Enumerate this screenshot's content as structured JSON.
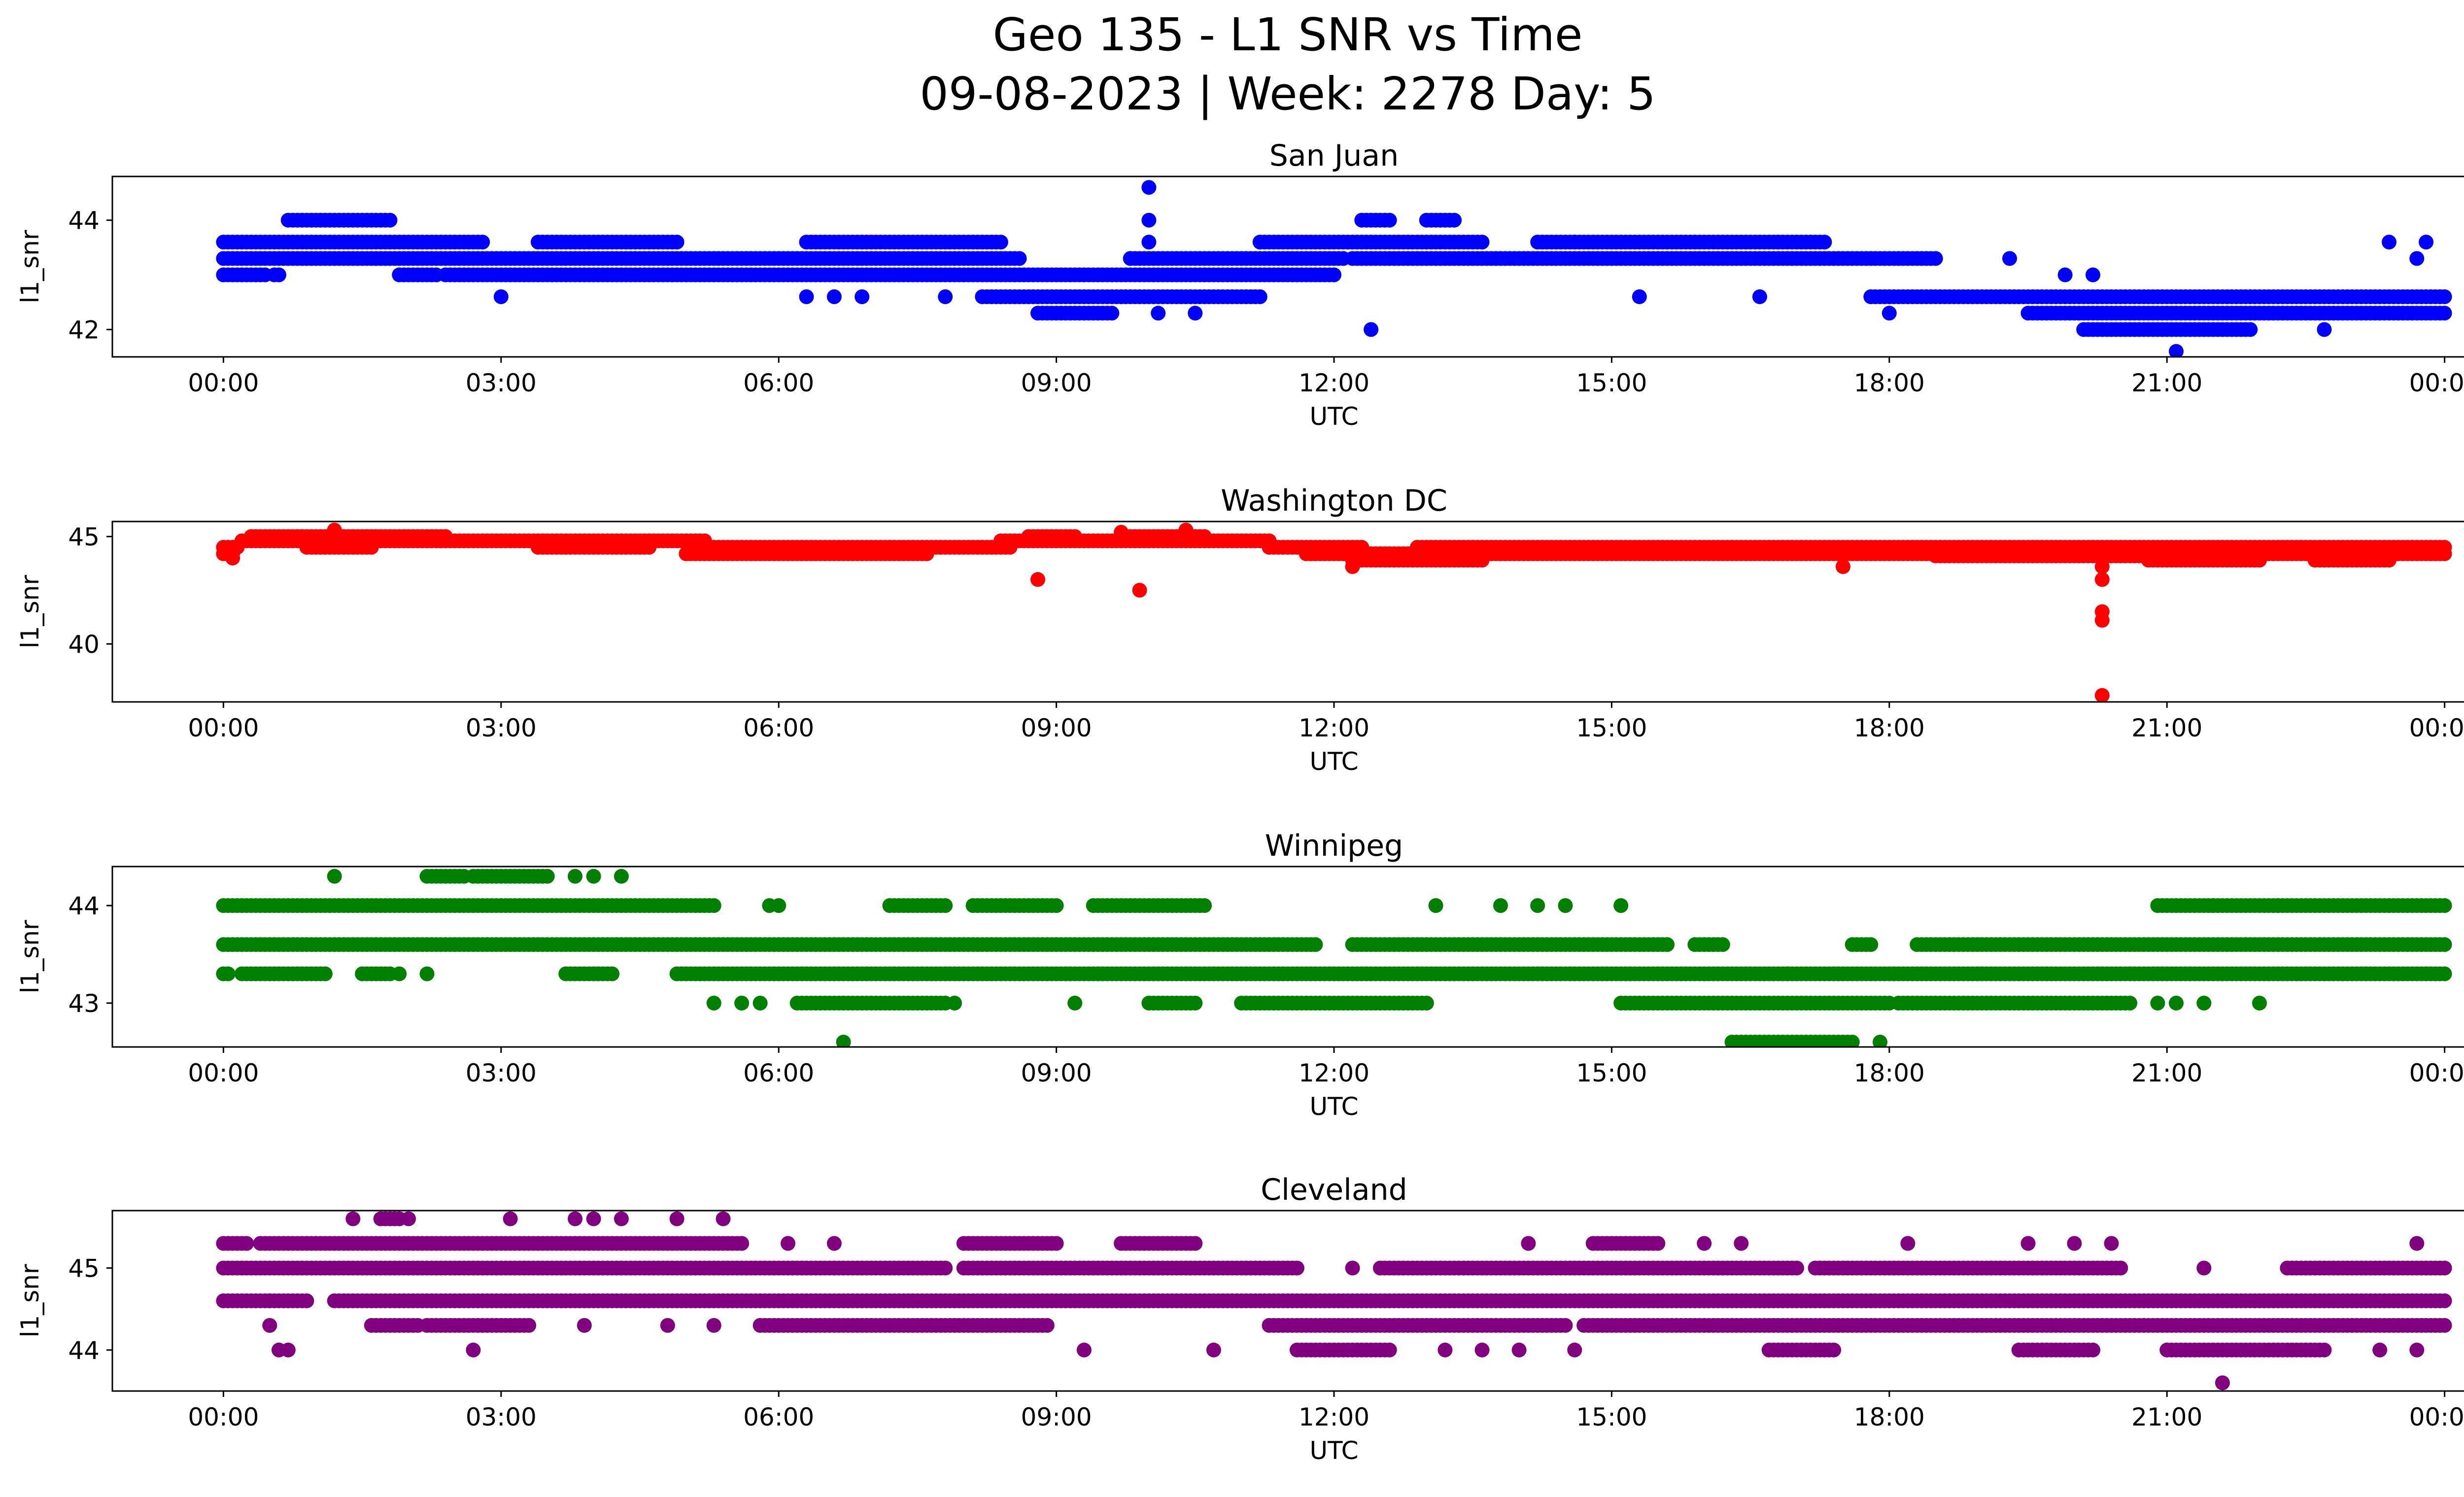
{
  "chart_data": {
    "type": "scatter",
    "title_line1": "Geo 135 - L1 SNR vs Time",
    "title_line2": "09-08-2023 | Week: 2278 Day: 5",
    "xlabel": "UTC",
    "ylabel": "l1_snr",
    "xlim_hours": [
      -1.2,
      25.2
    ],
    "x_tick_hours": [
      0,
      3,
      6,
      9,
      12,
      15,
      18,
      21,
      24
    ],
    "x_tick_labels": [
      "00:00",
      "03:00",
      "06:00",
      "09:00",
      "12:00",
      "15:00",
      "18:00",
      "21:00",
      "00:00"
    ],
    "grid": false,
    "panels": [
      {
        "station": "San Juan",
        "color": "#0000ff",
        "ylim": [
          41.5,
          44.8
        ],
        "y_ticks": [
          42,
          44
        ],
        "y_tick_labels": [
          "42",
          "44"
        ],
        "bands": [
          {
            "y": 43.0,
            "segments": [
              [
                0.0,
                0.45
              ],
              [
                0.55,
                0.6
              ],
              [
                1.9,
                2.3
              ],
              [
                2.4,
                12.0
              ]
            ]
          },
          {
            "y": 43.3,
            "segments": [
              [
                0.0,
                8.6
              ],
              [
                9.8,
                12.1
              ],
              [
                12.2,
                18.5
              ]
            ]
          },
          {
            "y": 43.6,
            "segments": [
              [
                0.0,
                2.8
              ],
              [
                3.4,
                4.9
              ],
              [
                6.3,
                8.4
              ],
              [
                11.2,
                13.6
              ],
              [
                14.2,
                17.3
              ]
            ]
          },
          {
            "y": 42.6,
            "segments": [
              [
                8.2,
                11.2
              ],
              [
                17.8,
                24.0
              ]
            ]
          },
          {
            "y": 42.3,
            "segments": [
              [
                8.8,
                9.6
              ],
              [
                19.5,
                24.0
              ]
            ]
          },
          {
            "y": 44.0,
            "segments": [
              [
                0.7,
                1.8
              ],
              [
                12.3,
                12.6
              ],
              [
                13.0,
                13.3
              ]
            ]
          },
          {
            "y": 42.0,
            "segments": [
              [
                20.1,
                21.9
              ]
            ]
          }
        ],
        "points": [
          [
            10.0,
            44.6
          ],
          [
            10.0,
            44.0
          ],
          [
            10.0,
            43.6
          ],
          [
            9.8,
            43.3
          ],
          [
            12.4,
            42.0
          ],
          [
            21.1,
            41.6
          ],
          [
            3.0,
            42.6
          ],
          [
            6.3,
            42.6
          ],
          [
            6.6,
            42.6
          ],
          [
            6.9,
            42.6
          ],
          [
            7.8,
            42.6
          ],
          [
            15.3,
            42.6
          ],
          [
            16.6,
            42.6
          ],
          [
            10.1,
            42.3
          ],
          [
            10.5,
            42.3
          ],
          [
            18.0,
            42.3
          ],
          [
            23.4,
            43.6
          ],
          [
            23.7,
            43.3
          ],
          [
            23.8,
            43.6
          ],
          [
            22.7,
            42.0
          ],
          [
            19.3,
            43.3
          ],
          [
            20.2,
            43.0
          ],
          [
            19.9,
            43.0
          ],
          [
            16.8,
            43.6
          ],
          [
            15.9,
            43.6
          ],
          [
            14.6,
            43.6
          ]
        ]
      },
      {
        "station": "Washington DC",
        "color": "#ff0000",
        "ylim": [
          37.3,
          45.7
        ],
        "y_ticks": [
          40,
          45
        ],
        "y_tick_labels": [
          "40",
          "45"
        ],
        "bands": [
          {
            "y": 44.5,
            "segments": [
              [
                0.0,
                0.15
              ],
              [
                0.9,
                1.6
              ],
              [
                3.4,
                4.6
              ],
              [
                5.3,
                8.5
              ],
              [
                11.3,
                12.3
              ],
              [
                12.9,
                24.0
              ]
            ]
          },
          {
            "y": 44.8,
            "segments": [
              [
                0.2,
                5.2
              ],
              [
                8.4,
                11.3
              ]
            ]
          },
          {
            "y": 45.0,
            "segments": [
              [
                0.3,
                2.4
              ],
              [
                8.7,
                9.2
              ],
              [
                9.7,
                10.6
              ]
            ]
          },
          {
            "y": 44.2,
            "segments": [
              [
                0.0,
                0.1
              ],
              [
                5.0,
                7.6
              ],
              [
                11.7,
                24.0
              ]
            ]
          },
          {
            "y": 43.9,
            "segments": [
              [
                12.2,
                13.6
              ],
              [
                20.8,
                22.0
              ],
              [
                22.6,
                23.4
              ]
            ]
          },
          {
            "y": 44.1,
            "segments": [
              [
                18.5,
                20.7
              ]
            ]
          }
        ],
        "points": [
          [
            8.8,
            43.0
          ],
          [
            9.9,
            42.5
          ],
          [
            20.3,
            43.6
          ],
          [
            20.3,
            43.0
          ],
          [
            20.3,
            41.5
          ],
          [
            20.3,
            41.1
          ],
          [
            20.3,
            37.6
          ],
          [
            1.2,
            45.3
          ],
          [
            10.4,
            45.3
          ],
          [
            9.7,
            45.2
          ],
          [
            12.2,
            43.6
          ],
          [
            17.5,
            43.6
          ],
          [
            0.1,
            44.0
          ]
        ]
      },
      {
        "station": "Winnipeg",
        "color": "#008000",
        "ylim": [
          42.55,
          44.4
        ],
        "y_ticks": [
          43,
          44
        ],
        "y_tick_labels": [
          "43",
          "44"
        ],
        "bands": [
          {
            "y": 44.0,
            "segments": [
              [
                0.0,
                5.3
              ],
              [
                7.2,
                7.8
              ],
              [
                8.1,
                9.0
              ],
              [
                9.4,
                10.6
              ],
              [
                20.9,
                24.0
              ]
            ]
          },
          {
            "y": 43.6,
            "segments": [
              [
                0.0,
                11.8
              ],
              [
                12.2,
                15.6
              ],
              [
                15.9,
                16.2
              ],
              [
                17.6,
                17.8
              ],
              [
                18.3,
                24.0
              ]
            ]
          },
          {
            "y": 43.3,
            "segments": [
              [
                0.0,
                0.05
              ],
              [
                0.2,
                1.1
              ],
              [
                1.5,
                1.8
              ],
              [
                3.7,
                4.2
              ],
              [
                4.9,
                24.0
              ]
            ]
          },
          {
            "y": 43.0,
            "segments": [
              [
                6.2,
                7.8
              ],
              [
                10.0,
                10.5
              ],
              [
                11.0,
                13.0
              ],
              [
                15.1,
                18.0
              ],
              [
                18.1,
                20.6
              ]
            ]
          },
          {
            "y": 44.3,
            "segments": [
              [
                2.2,
                2.6
              ],
              [
                2.7,
                3.5
              ]
            ]
          },
          {
            "y": 42.6,
            "segments": [
              [
                16.3,
                17.6
              ]
            ]
          }
        ],
        "points": [
          [
            1.2,
            44.3
          ],
          [
            3.8,
            44.3
          ],
          [
            4.0,
            44.3
          ],
          [
            4.3,
            44.3
          ],
          [
            1.9,
            43.3
          ],
          [
            2.2,
            43.3
          ],
          [
            6.7,
            42.6
          ],
          [
            17.9,
            42.6
          ],
          [
            5.3,
            43.0
          ],
          [
            5.6,
            43.0
          ],
          [
            5.8,
            43.0
          ],
          [
            9.2,
            43.0
          ],
          [
            7.9,
            43.0
          ],
          [
            13.1,
            44.0
          ],
          [
            13.8,
            44.0
          ],
          [
            14.2,
            44.0
          ],
          [
            14.5,
            44.0
          ],
          [
            15.1,
            44.0
          ],
          [
            5.9,
            44.0
          ],
          [
            6.0,
            44.0
          ],
          [
            21.5,
            44.0
          ],
          [
            22.2,
            44.0
          ],
          [
            21.1,
            43.0
          ],
          [
            21.4,
            43.0
          ],
          [
            22.0,
            43.0
          ],
          [
            20.9,
            43.0
          ],
          [
            16.9,
            43.3
          ]
        ]
      },
      {
        "station": "Cleveland",
        "color": "#800080",
        "ylim": [
          43.5,
          45.7
        ],
        "y_ticks": [
          44,
          45
        ],
        "y_tick_labels": [
          "44",
          "45"
        ],
        "bands": [
          {
            "y": 45.0,
            "segments": [
              [
                0.0,
                7.8
              ],
              [
                8.0,
                11.6
              ],
              [
                12.5,
                17.0
              ],
              [
                17.2,
                20.5
              ],
              [
                22.3,
                24.0
              ]
            ]
          },
          {
            "y": 44.6,
            "segments": [
              [
                0.0,
                0.9
              ],
              [
                1.2,
                24.0
              ]
            ]
          },
          {
            "y": 44.3,
            "segments": [
              [
                1.6,
                2.1
              ],
              [
                2.2,
                3.3
              ],
              [
                5.8,
                8.9
              ],
              [
                11.3,
                14.5
              ],
              [
                14.7,
                24.0
              ]
            ]
          },
          {
            "y": 45.3,
            "segments": [
              [
                0.0,
                0.25
              ],
              [
                0.4,
                5.6
              ],
              [
                8.0,
                9.0
              ],
              [
                9.7,
                10.5
              ],
              [
                14.8,
                15.5
              ]
            ]
          },
          {
            "y": 44.0,
            "segments": [
              [
                11.6,
                12.6
              ],
              [
                16.7,
                17.4
              ],
              [
                19.4,
                20.2
              ],
              [
                21.0,
                22.7
              ]
            ]
          },
          {
            "y": 45.6,
            "segments": [
              [
                1.7,
                1.9
              ]
            ]
          }
        ],
        "points": [
          [
            1.4,
            45.6
          ],
          [
            2.0,
            45.6
          ],
          [
            3.1,
            45.6
          ],
          [
            3.8,
            45.6
          ],
          [
            4.0,
            45.6
          ],
          [
            4.3,
            45.6
          ],
          [
            4.9,
            45.6
          ],
          [
            5.4,
            45.6
          ],
          [
            0.7,
            44.0
          ],
          [
            2.7,
            44.0
          ],
          [
            9.3,
            44.0
          ],
          [
            10.7,
            44.0
          ],
          [
            13.2,
            44.0
          ],
          [
            13.6,
            44.0
          ],
          [
            14.0,
            44.0
          ],
          [
            14.6,
            44.0
          ],
          [
            21.6,
            43.6
          ],
          [
            23.3,
            44.0
          ],
          [
            23.7,
            44.0
          ],
          [
            6.1,
            45.3
          ],
          [
            6.6,
            45.3
          ],
          [
            14.1,
            45.3
          ],
          [
            16.0,
            45.3
          ],
          [
            16.4,
            45.3
          ],
          [
            18.2,
            45.3
          ],
          [
            19.5,
            45.3
          ],
          [
            20.0,
            45.3
          ],
          [
            20.4,
            45.3
          ],
          [
            23.7,
            45.3
          ],
          [
            12.2,
            45.0
          ],
          [
            21.4,
            45.0
          ],
          [
            0.5,
            44.3
          ],
          [
            3.9,
            44.3
          ],
          [
            4.8,
            44.3
          ],
          [
            5.3,
            44.3
          ],
          [
            0.5,
            44.6
          ],
          [
            0.6,
            44.0
          ]
        ]
      }
    ]
  }
}
